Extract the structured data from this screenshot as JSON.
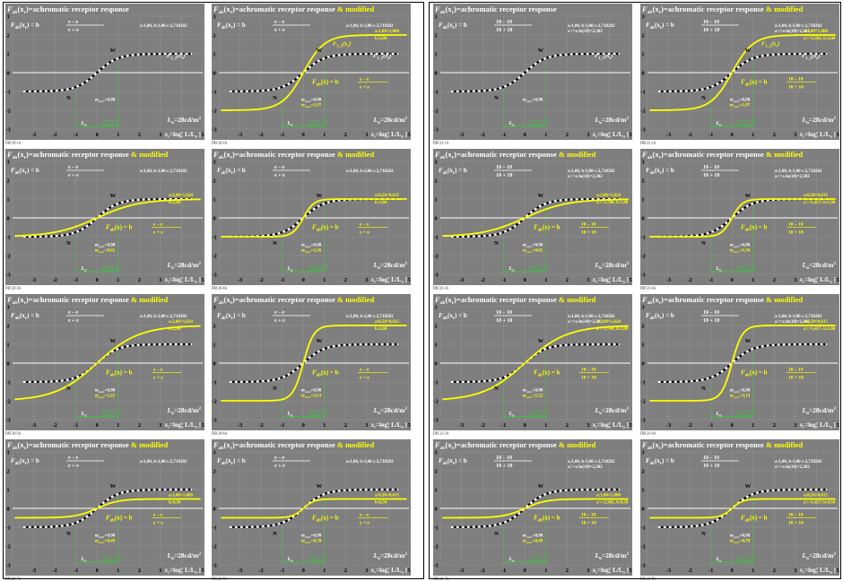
{
  "page": {
    "background": "#ffffff",
    "panel_bg": "#7f7f7f",
    "green": "#39c839",
    "yellow": "#ffff00",
    "white": "#ffffff",
    "black": "#000000"
  },
  "common": {
    "lum_label": "L",
    "lum_sub": "u",
    "lum_value": "=28cd/m",
    "lum_sup": "2",
    "x_axis_label": "x",
    "x_axis_sub": "r",
    "x_axis_rest": "=log[ L/L",
    "x_axis_rest_sub": "u",
    "x_axis_close": " ]",
    "w_label": "W",
    "n_label": "N",
    "m_label": "m",
    "m_sub": "t,xrr",
    "lower_L": "L",
    "lower_L_sub": "u",
    "green_note_1": "range of other",
    "green_note_2": "luminances",
    "F11_label": "F",
    "F11_sub": "1_1",
    "F11_arg": "(x",
    "F11_arg_sub": "r",
    "F11_close": ")",
    "F12_label": "F",
    "F12_sub": "1_2",
    "params": "a:1,00, b:1,00 c:2,718282",
    "params2": "a':=a ln(10)=2,302",
    "x_ticks": [
      "-4",
      "-3",
      "-2",
      "-1",
      "0",
      "1",
      "2",
      "3",
      "4",
      "5"
    ],
    "y_ticks": [
      "3",
      "2",
      "1",
      "0",
      "-1",
      "-2",
      "-3"
    ]
  },
  "charts": [
    {
      "id": "DEC20-1A",
      "title": "F",
      "title_sub": "ab",
      "title_rest": "(x",
      "title_rest_sub": "r",
      "title_tail": ")=achromatic receptor response",
      "modified": "",
      "mod_b": "",
      "mod_a": "",
      "mod_extra": "",
      "m_value": "=0,98",
      "m2": "",
      "ref": true,
      "a": 0,
      "b": 0,
      "show_yellow": false,
      "show_F12": false,
      "formula": "e",
      "exp_header": false
    },
    {
      "id": "DEC20-2A",
      "title": "F",
      "title_sub": "ab",
      "title_rest": "(x",
      "title_rest_sub": "r",
      "title_tail": ")=achromatic receptor response",
      "modified": " & modified",
      "mod_b": "b:2,00",
      "mod_a": "a:1,00",
      "mod_extra": "=1,000",
      "m_value": "=0,98",
      "m2": "=1,97",
      "ref": true,
      "a": 1.0,
      "b": 2.0,
      "show_yellow": true,
      "show_F12": true,
      "formula": "e",
      "exp_header": false
    },
    {
      "id": "DEC21-1A",
      "title": "F",
      "title_sub": "ab",
      "title_rest": "(x",
      "title_rest_sub": "r",
      "title_tail": ")=achromatic receptor response",
      "modified": "",
      "mod_b": "",
      "mod_a": "",
      "mod_extra": "",
      "m_value": "=0,98",
      "m2": "",
      "ref": true,
      "a": 0,
      "b": 0,
      "show_yellow": false,
      "show_F12": false,
      "formula": "10",
      "exp_header": true
    },
    {
      "id": "DEC21-2A",
      "title": "F",
      "title_sub": "ab",
      "title_rest": "(x",
      "title_rest_sub": "r",
      "title_tail": ")=achromatic receptor response",
      "modified": " & modified",
      "mod_b": "a':=2,302, b:2,00",
      "mod_a": "a:1,00",
      "mod_extra": "=1,000",
      "m_value": "=0,98",
      "m2": "=1,97",
      "ref": true,
      "a": 1.0,
      "b": 2.0,
      "show_yellow": true,
      "show_F12": true,
      "formula": "10",
      "exp_header": false
    },
    {
      "id": "DEC20-3A",
      "title": "F",
      "title_sub": "ab",
      "title_rest": "(x",
      "title_rest_sub": "r",
      "title_tail": ")=achromatic receptor response",
      "modified": " & modified",
      "mod_b": "b:1,00",
      "mod_a": "a:2,00",
      "mod_extra": "=1,624",
      "m_value": "=0,98",
      "m2": "=0,61",
      "ref": true,
      "a": 2.0,
      "b": 1.0,
      "show_yellow": true,
      "show_F12": false,
      "formula": "e",
      "exp_header": false
    },
    {
      "id": "DEC20-4A",
      "title": "F",
      "title_sub": "ab",
      "title_rest": "(x",
      "title_rest_sub": "r",
      "title_tail": ")=achromatic receptor response",
      "modified": " & modified",
      "mod_b": "b:1,00",
      "mod_a": "a:0,50",
      "mod_extra": "=0,615",
      "m_value": "=0,98",
      "m2": "=1,56",
      "ref": true,
      "a": 0.5,
      "b": 1.0,
      "show_yellow": true,
      "show_F12": false,
      "formula": "e",
      "exp_header": false
    },
    {
      "id": "DEC21-3A",
      "title": "F",
      "title_sub": "ab",
      "title_rest": "(x",
      "title_rest_sub": "r",
      "title_tail": ")=achromatic receptor response",
      "modified": " & modified",
      "mod_b": "a':=3,740, b:1,00",
      "mod_a": "a:2,00",
      "mod_extra": "=1,624",
      "m_value": "=0,98",
      "m2": "=0,61",
      "ref": true,
      "a": 2.0,
      "b": 1.0,
      "show_yellow": true,
      "show_F12": false,
      "formula": "10",
      "exp_header": false
    },
    {
      "id": "DEC21-4A",
      "title": "F",
      "title_sub": "ab",
      "title_rest": "(x",
      "title_rest_sub": "r",
      "title_tail": ")=achromatic receptor response",
      "modified": " & modified",
      "mod_b": "a':=1,417, b:1,00",
      "mod_a": "a:0,50",
      "mod_extra": "=0,615",
      "m_value": "=0,98",
      "m2": "=1,56",
      "ref": true,
      "a": 0.5,
      "b": 1.0,
      "show_yellow": true,
      "show_F12": false,
      "formula": "10",
      "exp_header": false
    },
    {
      "id": "DEC20-5A",
      "title": "F",
      "title_sub": "ab",
      "title_rest": "(x",
      "title_rest_sub": "r",
      "title_tail": ")=achromatic receptor response",
      "modified": " & modified",
      "mod_b": "b:2,00",
      "mod_a": "a:2,00",
      "mod_extra": "=1,624",
      "m_value": "=0,98",
      "m2": "=1,22",
      "ref": true,
      "a": 2.0,
      "b": 2.0,
      "show_yellow": true,
      "show_F12": false,
      "formula": "e",
      "exp_header": false
    },
    {
      "id": "DEC20-6A",
      "title": "F",
      "title_sub": "ab",
      "title_rest": "(x",
      "title_rest_sub": "r",
      "title_tail": ")=achromatic receptor response",
      "modified": " & modified",
      "mod_b": "b:2,00",
      "mod_a": "a:0,50",
      "mod_extra": "=0,615",
      "m_value": "=0,98",
      "m2": "=3,13",
      "ref": true,
      "a": 0.5,
      "b": 2.0,
      "show_yellow": true,
      "show_F12": false,
      "formula": "e",
      "exp_header": false
    },
    {
      "id": "DEC21-5A",
      "title": "F",
      "title_sub": "ab",
      "title_rest": "(x",
      "title_rest_sub": "r",
      "title_tail": ")=achromatic receptor response",
      "modified": " & modified",
      "mod_b": "a':=3,740, b:2,00",
      "mod_a": "a:2,00",
      "mod_extra": "=1,624",
      "m_value": "=0,98",
      "m2": "=1,22",
      "ref": true,
      "a": 2.0,
      "b": 2.0,
      "show_yellow": true,
      "show_F12": false,
      "formula": "10",
      "exp_header": false
    },
    {
      "id": "DEC21-6A",
      "title": "F",
      "title_sub": "ab",
      "title_rest": "(x",
      "title_rest_sub": "r",
      "title_tail": ")=achromatic receptor response",
      "modified": " & modified",
      "mod_b": "a':=1,417, b:2,00",
      "mod_a": "a:0,50",
      "mod_extra": "=0,615",
      "m_value": "=0,98",
      "m2": "=3,13",
      "ref": true,
      "a": 0.5,
      "b": 2.0,
      "show_yellow": true,
      "show_F12": false,
      "formula": "10",
      "exp_header": false
    },
    {
      "id": "DEC20-7A",
      "title": "F",
      "title_sub": "ab",
      "title_rest": "(x",
      "title_rest_sub": "r",
      "title_tail": ")=achromatic receptor response",
      "modified": " & modified",
      "mod_b": "b:0,50",
      "mod_a": "a:1,00",
      "mod_extra": "=1,000",
      "m_value": "=0,98",
      "m2": "=0,49",
      "ref": true,
      "a": 1.0,
      "b": 0.5,
      "show_yellow": true,
      "show_F12": false,
      "formula": "e",
      "exp_header": false
    },
    {
      "id": "DEC20-8A",
      "title": "F",
      "title_sub": "ab",
      "title_rest": "(x",
      "title_rest_sub": "r",
      "title_tail": ")=achromatic receptor response",
      "modified": " & modified",
      "mod_b": "b:0,50",
      "mod_a": "a:0,50",
      "mod_extra": "=0,615",
      "m_value": "=0,98",
      "m2": "=0,78",
      "ref": true,
      "a": 0.5,
      "b": 0.5,
      "show_yellow": true,
      "show_F12": false,
      "formula": "e",
      "exp_header": false
    },
    {
      "id": "DEC21-7A",
      "title": "F",
      "title_sub": "ab",
      "title_rest": "(x",
      "title_rest_sub": "r",
      "title_tail": ")=achromatic receptor response",
      "modified": " & modified",
      "mod_b": "a':=2,302, b:0,50",
      "mod_a": "a:1,00",
      "mod_extra": "=1,000",
      "m_value": "=0,98",
      "m2": "=0,49",
      "ref": true,
      "a": 1.0,
      "b": 0.5,
      "show_yellow": true,
      "show_F12": false,
      "formula": "10",
      "exp_header": false
    },
    {
      "id": "DEC21-8A",
      "title": "F",
      "title_sub": "ab",
      "title_rest": "(x",
      "title_rest_sub": "r",
      "title_tail": ")=achromatic receptor response",
      "modified": " & modified",
      "mod_b": "a':=1,417, b:0,50",
      "mod_a": "a:0,50",
      "mod_extra": "=0,615",
      "m_value": "=0,98",
      "m2": "=0,78",
      "ref": true,
      "a": 0.5,
      "b": 0.5,
      "show_yellow": true,
      "show_F12": false,
      "formula": "10",
      "exp_header": false
    }
  ],
  "chart_data": {
    "type": "line",
    "x_range": [
      -4,
      5
    ],
    "y_range": [
      -3,
      3
    ],
    "grid": true,
    "reference_curve": "tanh(x)",
    "series": [
      {
        "name": "F_ab(x_r)=achromatic receptor response",
        "function": "b*tanh(x/a)"
      }
    ]
  }
}
